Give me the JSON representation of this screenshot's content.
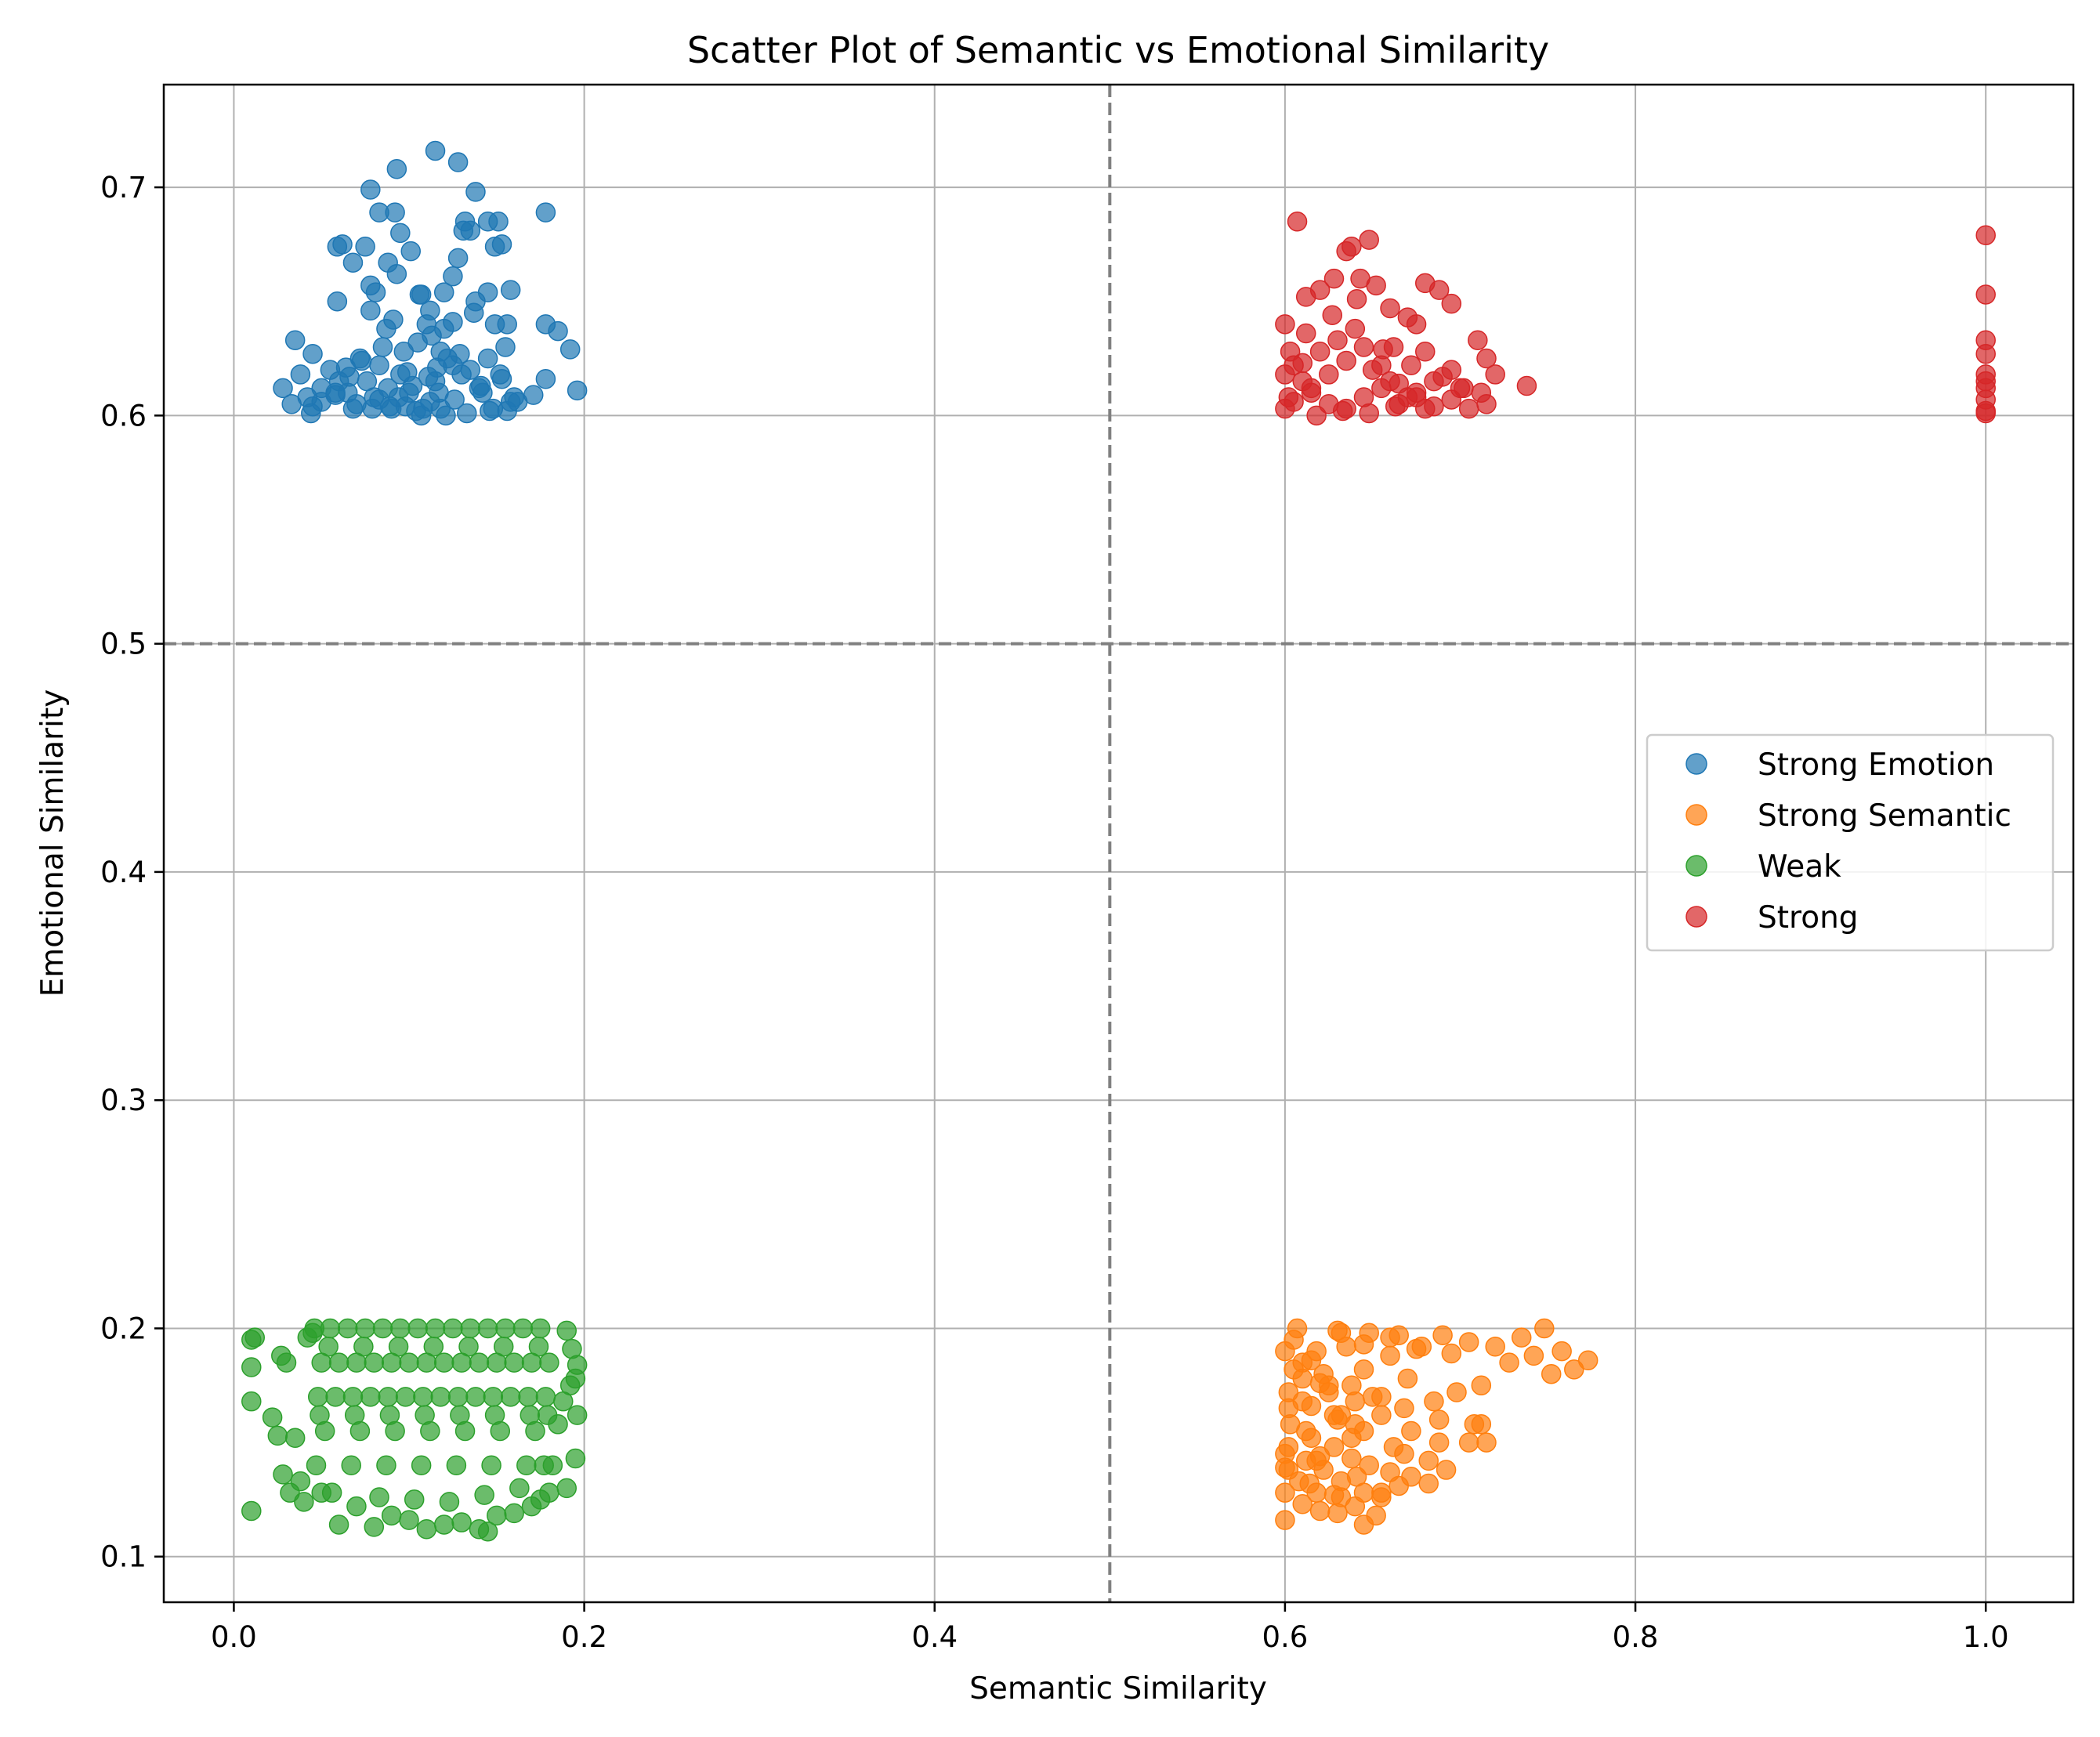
{
  "chart_data": {
    "type": "scatter",
    "title": "Scatter Plot of Semantic vs Emotional Similarity",
    "xlabel": "Semantic Similarity",
    "ylabel": "Emotional Similarity",
    "xlim": [
      -0.04,
      1.05
    ],
    "ylim": [
      0.08,
      0.745
    ],
    "xticks": [
      0.0,
      0.2,
      0.4,
      0.6,
      0.8,
      1.0
    ],
    "xtick_labels": [
      "0.0",
      "0.2",
      "0.4",
      "0.6",
      "0.8",
      "1.0"
    ],
    "yticks": [
      0.1,
      0.2,
      0.3,
      0.4,
      0.5,
      0.6,
      0.7
    ],
    "ytick_labels": [
      "0.1",
      "0.2",
      "0.3",
      "0.4",
      "0.5",
      "0.6",
      "0.7"
    ],
    "grid": true,
    "threshold_lines": {
      "x": 0.5,
      "y": 0.5,
      "color": "#808080",
      "style": "dashed"
    },
    "legend_position": "center-right",
    "marker_alpha": 0.7,
    "series": [
      {
        "name": "Strong Emotion",
        "color": "#1f77b4",
        "x": [
          0.115,
          0.128,
          0.093,
          0.138,
          0.078,
          0.083,
          0.092,
          0.178,
          0.132,
          0.145,
          0.151,
          0.095,
          0.131,
          0.062,
          0.101,
          0.059,
          0.075,
          0.068,
          0.088,
          0.153,
          0.149,
          0.135,
          0.128,
          0.106,
          0.107,
          0.081,
          0.078,
          0.059,
          0.093,
          0.12,
          0.112,
          0.078,
          0.158,
          0.145,
          0.138,
          0.178,
          0.091,
          0.185,
          0.035,
          0.045,
          0.038,
          0.149,
          0.156,
          0.192,
          0.178,
          0.196,
          0.125,
          0.028,
          0.145,
          0.171,
          0.158,
          0.156,
          0.033,
          0.044,
          0.042,
          0.11,
          0.12,
          0.105,
          0.118,
          0.125,
          0.13,
          0.115,
          0.1,
          0.112,
          0.108,
          0.122,
          0.135,
          0.14,
          0.095,
          0.088,
          0.08,
          0.07,
          0.065,
          0.06,
          0.055,
          0.05,
          0.072,
          0.085,
          0.098,
          0.142,
          0.148,
          0.152,
          0.126,
          0.118,
          0.102,
          0.09,
          0.083,
          0.076,
          0.068,
          0.058,
          0.05,
          0.045,
          0.16,
          0.155,
          0.137,
          0.113,
          0.097,
          0.087,
          0.125,
          0.111,
          0.094,
          0.079,
          0.064,
          0.104,
          0.116,
          0.129,
          0.141,
          0.058,
          0.066,
          0.073,
          0.089,
          0.121,
          0.133,
          0.146,
          0.153,
          0.162,
          0.083,
          0.099,
          0.107,
          0.117
        ],
        "y": [
          0.716,
          0.711,
          0.708,
          0.698,
          0.699,
          0.689,
          0.689,
          0.689,
          0.685,
          0.685,
          0.685,
          0.68,
          0.681,
          0.675,
          0.672,
          0.674,
          0.674,
          0.667,
          0.667,
          0.675,
          0.674,
          0.681,
          0.669,
          0.653,
          0.653,
          0.654,
          0.657,
          0.65,
          0.662,
          0.654,
          0.646,
          0.646,
          0.655,
          0.654,
          0.65,
          0.64,
          0.642,
          0.637,
          0.633,
          0.627,
          0.618,
          0.64,
          0.64,
          0.629,
          0.616,
          0.611,
          0.661,
          0.612,
          0.625,
          0.609,
          0.606,
          0.602,
          0.605,
          0.601,
          0.608,
          0.64,
          0.638,
          0.632,
          0.628,
          0.622,
          0.618,
          0.615,
          0.61,
          0.606,
          0.603,
          0.625,
          0.62,
          0.612,
          0.618,
          0.612,
          0.608,
          0.605,
          0.61,
          0.615,
          0.62,
          0.612,
          0.625,
          0.63,
          0.604,
          0.61,
          0.603,
          0.618,
          0.607,
          0.603,
          0.613,
          0.603,
          0.622,
          0.615,
          0.603,
          0.61,
          0.606,
          0.604,
          0.608,
          0.63,
          0.645,
          0.635,
          0.628,
          0.638,
          0.641,
          0.617,
          0.608,
          0.603,
          0.621,
          0.602,
          0.621,
          0.627,
          0.613,
          0.609,
          0.617,
          0.624,
          0.604,
          0.6,
          0.601,
          0.602,
          0.616,
          0.606,
          0.607,
          0.619,
          0.6,
          0.61
        ]
      },
      {
        "name": "Strong Semantic",
        "color": "#ff7f0e",
        "x": [
          0.605,
          0.618,
          0.632,
          0.645,
          0.66,
          0.675,
          0.69,
          0.705,
          0.72,
          0.735,
          0.748,
          0.758,
          0.765,
          0.773,
          0.752,
          0.742,
          0.728,
          0.712,
          0.698,
          0.685,
          0.61,
          0.622,
          0.638,
          0.655,
          0.668,
          0.688,
          0.708,
          0.61,
          0.625,
          0.64,
          0.655,
          0.672,
          0.688,
          0.61,
          0.628,
          0.645,
          0.662,
          0.682,
          0.705,
          0.712,
          0.715,
          0.603,
          0.615,
          0.628,
          0.638,
          0.648,
          0.66,
          0.672,
          0.682,
          0.692,
          0.602,
          0.612,
          0.622,
          0.632,
          0.645,
          0.655,
          0.665,
          0.602,
          0.614,
          0.628,
          0.64,
          0.652,
          0.6,
          0.61,
          0.62,
          0.632,
          0.645,
          0.6,
          0.608,
          0.618,
          0.63,
          0.641,
          0.655,
          0.668,
          0.6,
          0.615,
          0.635,
          0.66,
          0.62,
          0.645,
          0.67,
          0.605,
          0.625,
          0.65,
          0.602,
          0.63,
          0.612,
          0.64,
          0.6,
          0.618,
          0.607,
          0.63,
          0.648,
          0.665,
          0.678,
          0.695,
          0.602,
          0.615,
          0.62,
          0.638,
          0.6,
          0.632
        ],
        "y": [
          0.195,
          0.19,
          0.198,
          0.193,
          0.196,
          0.191,
          0.197,
          0.194,
          0.192,
          0.196,
          0.2,
          0.19,
          0.182,
          0.186,
          0.18,
          0.188,
          0.185,
          0.175,
          0.172,
          0.168,
          0.185,
          0.18,
          0.175,
          0.17,
          0.165,
          0.16,
          0.158,
          0.178,
          0.172,
          0.168,
          0.162,
          0.155,
          0.15,
          0.168,
          0.162,
          0.155,
          0.148,
          0.142,
          0.15,
          0.158,
          0.15,
          0.158,
          0.152,
          0.148,
          0.143,
          0.14,
          0.137,
          0.135,
          0.132,
          0.138,
          0.148,
          0.142,
          0.138,
          0.133,
          0.128,
          0.126,
          0.131,
          0.138,
          0.132,
          0.127,
          0.122,
          0.118,
          0.128,
          0.123,
          0.12,
          0.126,
          0.114,
          0.116,
          0.133,
          0.128,
          0.119,
          0.135,
          0.128,
          0.145,
          0.19,
          0.186,
          0.192,
          0.188,
          0.176,
          0.182,
          0.178,
          0.182,
          0.175,
          0.17,
          0.165,
          0.16,
          0.155,
          0.158,
          0.145,
          0.142,
          0.2,
          0.199,
          0.198,
          0.197,
          0.192,
          0.189,
          0.172,
          0.166,
          0.144,
          0.152,
          0.139,
          0.162
        ]
      },
      {
        "name": "Weak",
        "color": "#2ca02c",
        "x": [
          0.01,
          0.01,
          0.01,
          0.012,
          0.01,
          0.022,
          0.025,
          0.027,
          0.03,
          0.028,
          0.032,
          0.035,
          0.038,
          0.04,
          0.042,
          0.045,
          0.06,
          0.08,
          0.1,
          0.11,
          0.12,
          0.14,
          0.145,
          0.15,
          0.17,
          0.18,
          0.19,
          0.195,
          0.196,
          0.195,
          0.196,
          0.193,
          0.19,
          0.192,
          0.188,
          0.185,
          0.182,
          0.05,
          0.07,
          0.09,
          0.13,
          0.16,
          0.175,
          0.046,
          0.055,
          0.065,
          0.075,
          0.085,
          0.095,
          0.105,
          0.115,
          0.125,
          0.135,
          0.145,
          0.155,
          0.165,
          0.175,
          0.05,
          0.06,
          0.07,
          0.08,
          0.09,
          0.1,
          0.11,
          0.12,
          0.13,
          0.14,
          0.15,
          0.16,
          0.17,
          0.18,
          0.048,
          0.058,
          0.068,
          0.078,
          0.088,
          0.098,
          0.108,
          0.118,
          0.128,
          0.138,
          0.148,
          0.158,
          0.168,
          0.178,
          0.052,
          0.072,
          0.092,
          0.112,
          0.132,
          0.152,
          0.172,
          0.047,
          0.067,
          0.087,
          0.107,
          0.127,
          0.147,
          0.167,
          0.177,
          0.054,
          0.074,
          0.094,
          0.114,
          0.134,
          0.154,
          0.174,
          0.049,
          0.069,
          0.089,
          0.109,
          0.129,
          0.149,
          0.169,
          0.179,
          0.056,
          0.083,
          0.103,
          0.123,
          0.143,
          0.163
        ],
        "y": [
          0.12,
          0.168,
          0.183,
          0.196,
          0.195,
          0.161,
          0.153,
          0.188,
          0.185,
          0.136,
          0.128,
          0.152,
          0.133,
          0.124,
          0.196,
          0.198,
          0.114,
          0.113,
          0.116,
          0.112,
          0.114,
          0.112,
          0.111,
          0.118,
          0.122,
          0.128,
          0.13,
          0.143,
          0.162,
          0.178,
          0.184,
          0.191,
          0.199,
          0.175,
          0.168,
          0.158,
          0.14,
          0.128,
          0.122,
          0.118,
          0.115,
          0.119,
          0.125,
          0.2,
          0.2,
          0.2,
          0.2,
          0.2,
          0.2,
          0.2,
          0.2,
          0.2,
          0.2,
          0.2,
          0.2,
          0.2,
          0.2,
          0.185,
          0.185,
          0.185,
          0.185,
          0.185,
          0.185,
          0.185,
          0.185,
          0.185,
          0.185,
          0.185,
          0.185,
          0.185,
          0.185,
          0.17,
          0.17,
          0.17,
          0.17,
          0.17,
          0.17,
          0.17,
          0.17,
          0.17,
          0.17,
          0.17,
          0.17,
          0.17,
          0.17,
          0.155,
          0.155,
          0.155,
          0.155,
          0.155,
          0.155,
          0.155,
          0.14,
          0.14,
          0.14,
          0.14,
          0.14,
          0.14,
          0.14,
          0.14,
          0.192,
          0.192,
          0.192,
          0.192,
          0.192,
          0.192,
          0.192,
          0.162,
          0.162,
          0.162,
          0.162,
          0.162,
          0.162,
          0.162,
          0.162,
          0.128,
          0.126,
          0.125,
          0.124,
          0.127,
          0.13
        ]
      },
      {
        "name": "Strong",
        "color": "#d62728",
        "x": [
          0.607,
          0.638,
          0.648,
          0.643,
          0.635,
          0.628,
          0.612,
          0.62,
          0.652,
          0.66,
          0.675,
          0.688,
          0.695,
          0.68,
          0.67,
          0.662,
          0.71,
          0.715,
          0.72,
          0.738,
          0.715,
          0.702,
          0.695,
          0.68,
          0.6,
          0.603,
          0.605,
          0.61,
          0.615,
          0.625,
          0.635,
          0.645,
          0.655,
          0.665,
          0.675,
          0.685,
          0.695,
          0.705,
          0.712,
          0.6,
          0.61,
          0.62,
          0.63,
          0.64,
          0.65,
          0.66,
          0.67,
          0.68,
          0.69,
          0.7,
          0.605,
          0.615,
          0.625,
          0.635,
          0.645,
          0.655,
          0.665,
          0.675,
          0.685,
          0.6,
          0.612,
          0.627,
          0.641,
          0.656,
          0.672,
          0.602,
          0.618,
          0.633,
          0.648,
          0.663,
          1.0,
          1.0,
          1.0,
          1.0,
          1.0,
          1.0,
          1.0,
          1.0,
          1.0,
          1.0
        ],
        "y": [
          0.685,
          0.674,
          0.677,
          0.66,
          0.672,
          0.66,
          0.652,
          0.655,
          0.657,
          0.647,
          0.64,
          0.655,
          0.649,
          0.658,
          0.643,
          0.63,
          0.633,
          0.625,
          0.618,
          0.613,
          0.605,
          0.612,
          0.62,
          0.628,
          0.64,
          0.628,
          0.622,
          0.615,
          0.61,
          0.605,
          0.603,
          0.608,
          0.612,
          0.605,
          0.61,
          0.615,
          0.607,
          0.603,
          0.61,
          0.618,
          0.623,
          0.628,
          0.633,
          0.638,
          0.62,
          0.615,
          0.608,
          0.603,
          0.617,
          0.612,
          0.606,
          0.612,
          0.618,
          0.624,
          0.63,
          0.622,
          0.614,
          0.608,
          0.604,
          0.603,
          0.636,
          0.644,
          0.651,
          0.629,
          0.622,
          0.608,
          0.6,
          0.602,
          0.601,
          0.604,
          0.679,
          0.653,
          0.633,
          0.627,
          0.618,
          0.615,
          0.612,
          0.607,
          0.602,
          0.601
        ]
      }
    ]
  }
}
